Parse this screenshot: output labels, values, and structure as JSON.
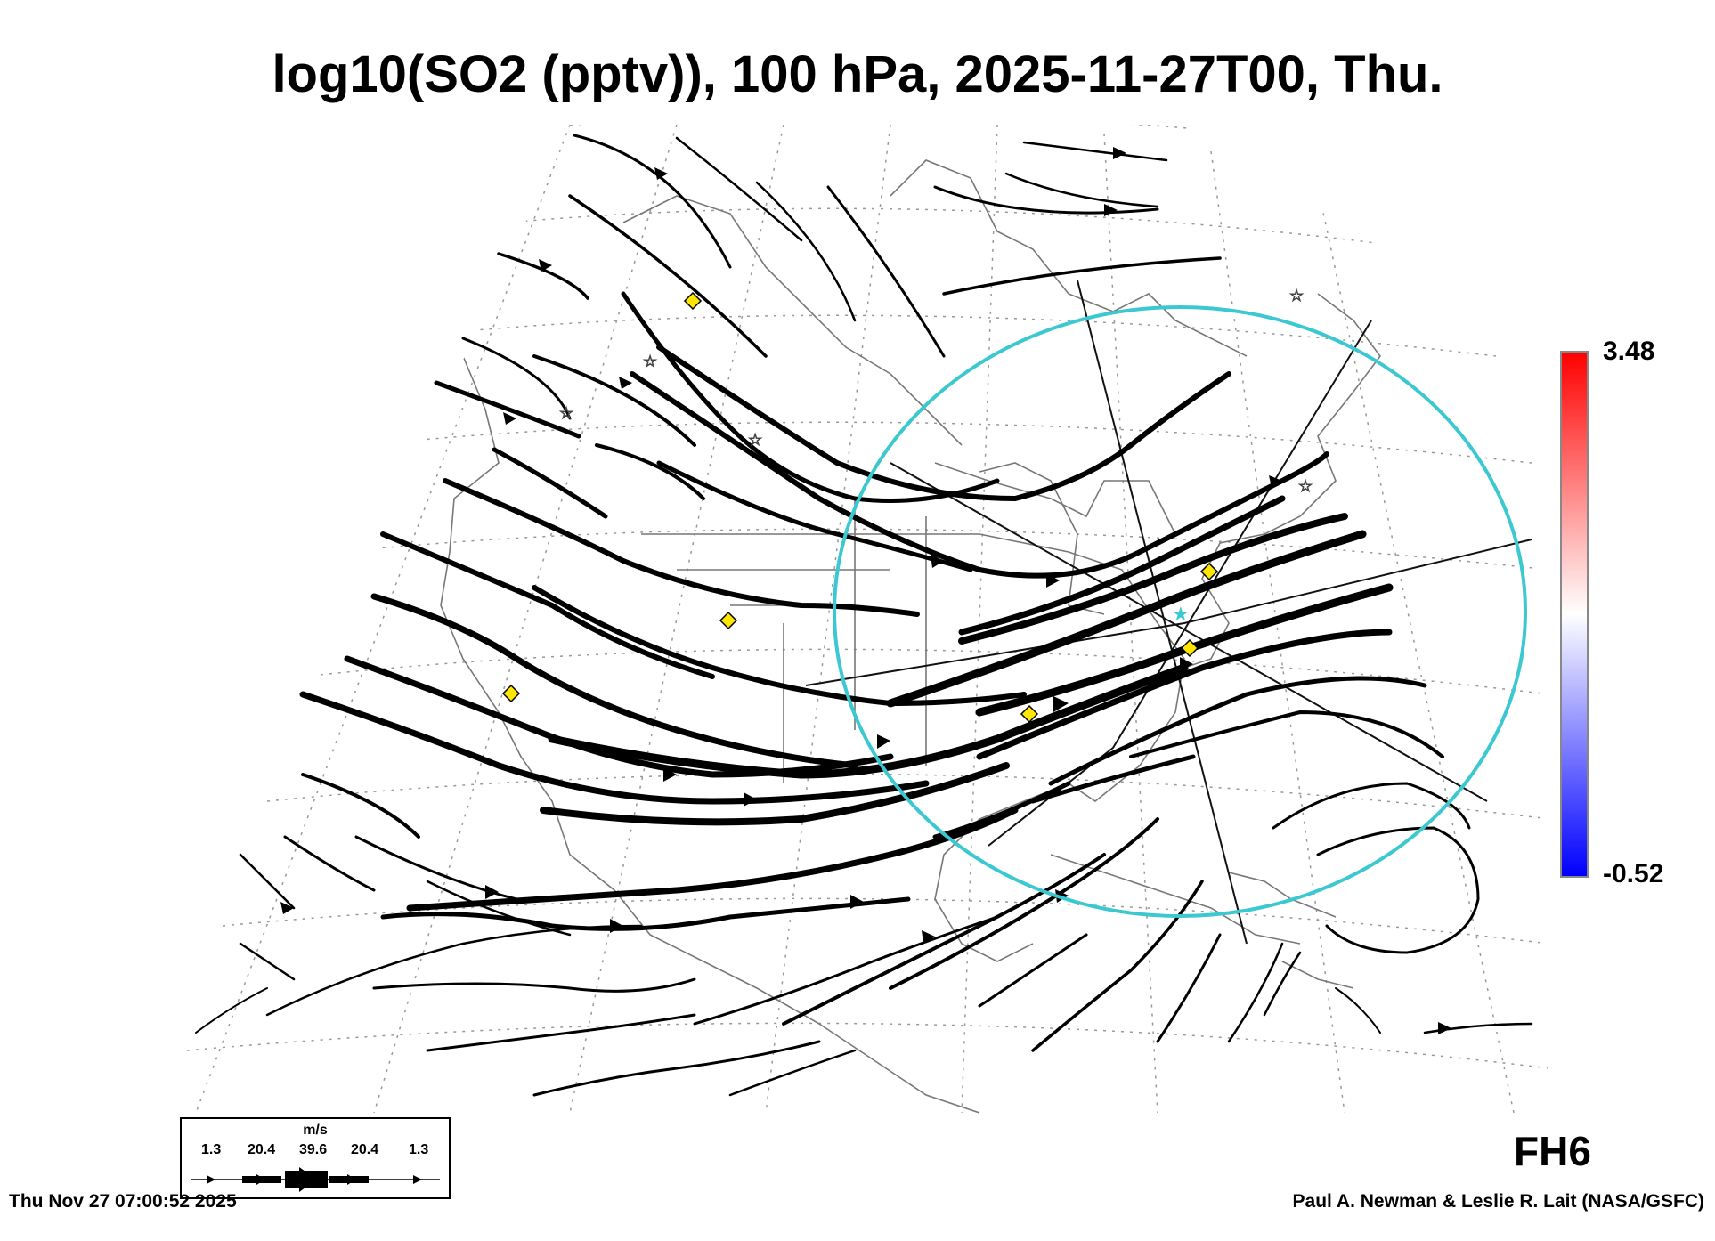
{
  "title": "log10(SO2 (pptv)), 100 hPa, 2025-11-27T00, Thu.",
  "colorbar": {
    "max_label": "3.48",
    "min_label": "-0.52",
    "colors": [
      "#0000ff",
      "#ffffff",
      "#ff0000"
    ]
  },
  "legend": {
    "unit": "m/s",
    "speeds": [
      "1.3",
      "20.4",
      "39.6",
      "20.4",
      "1.3"
    ]
  },
  "forecast_label": "FH6",
  "timestamp": "Thu Nov 27 07:00:52 2025",
  "credit": "Paul A. Newman & Leslie R. Lait (NASA/GSFC)",
  "map": {
    "ring_color": "#3cc8d0",
    "marker_color": "#ffe600",
    "streamline_color": "#000000",
    "coast_color": "#777777"
  }
}
